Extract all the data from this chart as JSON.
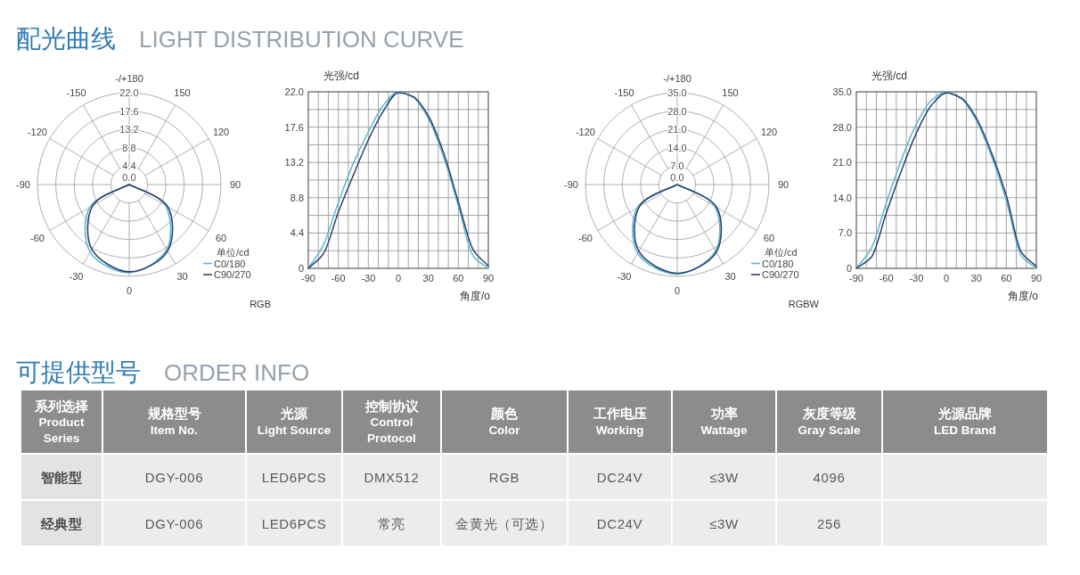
{
  "chart_data": [
    {
      "type": "radar",
      "title": "配光曲线",
      "subtitle": "LIGHT DISTRIBUTION CURVE",
      "categories": [
        "-/+180",
        "150",
        "120",
        "90",
        "60",
        "30",
        "0",
        "-30",
        "-60",
        "-90",
        "-120",
        "-150"
      ],
      "ylim": [
        0,
        22
      ],
      "yticks": [
        {
          "value": 0,
          "label": "0.0"
        },
        {
          "value": 4.4,
          "label": "4.4"
        },
        {
          "value": 8.8,
          "label": "8.8"
        },
        {
          "value": 13.2,
          "label": "13.2"
        },
        {
          "value": 17.6,
          "label": "17.6"
        },
        {
          "value": 22,
          "label": "22.0"
        }
      ],
      "grid": true,
      "legend": "bottom right",
      "legend_title": "单位/cd",
      "series": [
        {
          "name": "C0/180",
          "color": "#5ab8d5",
          "values": [
            0,
            0,
            0,
            0,
            10.0,
            18.0,
            21.1,
            18.7,
            10.9,
            0,
            0,
            0
          ]
        },
        {
          "name": "C90/270",
          "color": "#2d4068",
          "values": [
            0,
            0,
            0,
            0,
            10.7,
            18.4,
            20.9,
            17.9,
            10.1,
            0,
            0,
            0
          ]
        }
      ]
    },
    {
      "type": "line",
      "x": [
        -90,
        -75,
        -60,
        -45,
        -30,
        -15,
        0,
        15,
        30,
        45,
        60,
        75,
        90
      ],
      "xlim": [
        -90,
        90
      ],
      "xticks": [
        -90,
        {
          "value": -80,
          "label": null
        },
        {
          "value": -70,
          "label": null
        },
        -60,
        {
          "value": -50,
          "label": null
        },
        {
          "value": -40,
          "label": null
        },
        -30,
        {
          "value": -20,
          "label": null
        },
        {
          "value": -10,
          "label": null
        },
        0,
        {
          "value": 10,
          "label": null
        },
        {
          "value": 20,
          "label": null
        },
        30,
        {
          "value": 40,
          "label": null
        },
        {
          "value": 50,
          "label": null
        },
        60,
        {
          "value": 70,
          "label": null
        },
        {
          "value": 80,
          "label": null
        },
        90
      ],
      "ylim": [
        0,
        22
      ],
      "yticks": [
        0,
        {
          "value": 2.2,
          "label": null
        },
        4.4,
        {
          "value": 6.6,
          "label": null
        },
        8.8,
        {
          "value": 11,
          "label": null
        },
        13.2,
        {
          "value": 15.4,
          "label": null
        },
        17.6,
        {
          "value": 19.8,
          "label": null
        },
        {
          "value": 22,
          "label": "22.0"
        }
      ],
      "xlabel": "角度/o",
      "ylabel": "光强/cd",
      "grid": true,
      "annotations": [
        "RGB"
      ],
      "series": [
        {
          "color": "#5ab8d5",
          "values": [
            0,
            2.9,
            8.2,
            13.1,
            17.0,
            20.3,
            22.0,
            21.3,
            18.7,
            14.0,
            7.8,
            1.5,
            0
          ]
        },
        {
          "color": "#2d4068",
          "values": [
            0,
            1.8,
            7.0,
            11.6,
            16.0,
            19.6,
            21.9,
            21.4,
            19.0,
            14.5,
            8.3,
            2.3,
            0.3
          ]
        }
      ]
    },
    {
      "type": "radar",
      "categories": [
        "-/+180",
        "150",
        "120",
        "90",
        "60",
        "30",
        "0",
        "-30",
        "-60",
        "-90",
        "-120",
        "-150"
      ],
      "ylim": [
        0,
        35
      ],
      "yticks": [
        {
          "value": 0,
          "label": "0.0"
        },
        {
          "value": 7,
          "label": "7.0"
        },
        {
          "value": 14,
          "label": "14.0"
        },
        {
          "value": 21,
          "label": "21.0"
        },
        {
          "value": 28,
          "label": "28.0"
        },
        {
          "value": 35,
          "label": "35.0"
        }
      ],
      "grid": true,
      "legend": "bottom right",
      "legend_title": "单位/cd",
      "series": [
        {
          "name": "C0/180",
          "color": "#5ab8d5",
          "values": [
            0,
            0,
            0,
            0,
            16.5,
            29.2,
            34.1,
            30.2,
            17.5,
            0,
            0,
            0
          ]
        },
        {
          "name": "C90/270",
          "color": "#2d4068",
          "values": [
            0,
            0,
            0,
            0,
            17.3,
            29.8,
            33.8,
            29.3,
            16.6,
            0,
            0,
            0
          ]
        }
      ]
    },
    {
      "type": "line",
      "x": [
        -90,
        -75,
        -60,
        -45,
        -30,
        -15,
        0,
        15,
        30,
        45,
        60,
        75,
        90
      ],
      "xlim": [
        -90,
        90
      ],
      "xticks": [
        -90,
        {
          "value": -80,
          "label": null
        },
        {
          "value": -70,
          "label": null
        },
        -60,
        {
          "value": -50,
          "label": null
        },
        {
          "value": -40,
          "label": null
        },
        -30,
        {
          "value": -20,
          "label": null
        },
        {
          "value": -10,
          "label": null
        },
        0,
        {
          "value": 10,
          "label": null
        },
        {
          "value": 20,
          "label": null
        },
        30,
        {
          "value": 40,
          "label": null
        },
        {
          "value": 50,
          "label": null
        },
        60,
        {
          "value": 70,
          "label": null
        },
        {
          "value": 80,
          "label": null
        },
        90
      ],
      "ylim": [
        0,
        35
      ],
      "yticks": [
        0,
        {
          "value": 3.5,
          "label": null
        },
        {
          "value": 7,
          "label": "7.0"
        },
        {
          "value": 10.5,
          "label": null
        },
        {
          "value": 14,
          "label": "14.0"
        },
        {
          "value": 17.5,
          "label": null
        },
        {
          "value": 21,
          "label": "21.0"
        },
        {
          "value": 24.5,
          "label": null
        },
        {
          "value": 28,
          "label": "28.0"
        },
        {
          "value": 31.5,
          "label": null
        },
        {
          "value": 35,
          "label": "35.0"
        }
      ],
      "xlabel": "角度/o",
      "ylabel": "光强/cd",
      "grid": true,
      "annotations": [
        "RGBW"
      ],
      "series": [
        {
          "color": "#5ab8d5",
          "values": [
            0,
            4.0,
            13.0,
            21.5,
            28.6,
            33.3,
            35.0,
            33.6,
            29.3,
            22.3,
            13.4,
            2.5,
            0
          ]
        },
        {
          "color": "#2d4068",
          "values": [
            0,
            2.2,
            11.0,
            19.3,
            26.8,
            32.3,
            34.8,
            33.8,
            29.8,
            23.0,
            14.4,
            3.2,
            0.4
          ]
        }
      ]
    },
    {
      "type": "other",
      "title": "可提供型号",
      "subtitle": "ORDER INFO",
      "categories": [
        "系列选择\nProduct\nSeries",
        "规格型号\nItem No.",
        "光源\nLight Source",
        "控制协议\nControl\nProtocol",
        "颜色\nColor",
        "工作电压\nWorking",
        "功率\nWattage",
        "灰度等级\nGray Scale",
        "光源品牌\nLED Brand"
      ],
      "cell_labels": [
        [
          "智能型",
          "DGY-006",
          "LED6PCS",
          "DMX512",
          "RGB",
          "DC24V",
          "≤3W",
          "4096",
          null
        ],
        [
          "经典型",
          "DGY-006",
          "LED6PCS",
          "常亮",
          "金黄光（可选）",
          "DC24V",
          "≤3W",
          "256",
          null
        ]
      ]
    }
  ]
}
